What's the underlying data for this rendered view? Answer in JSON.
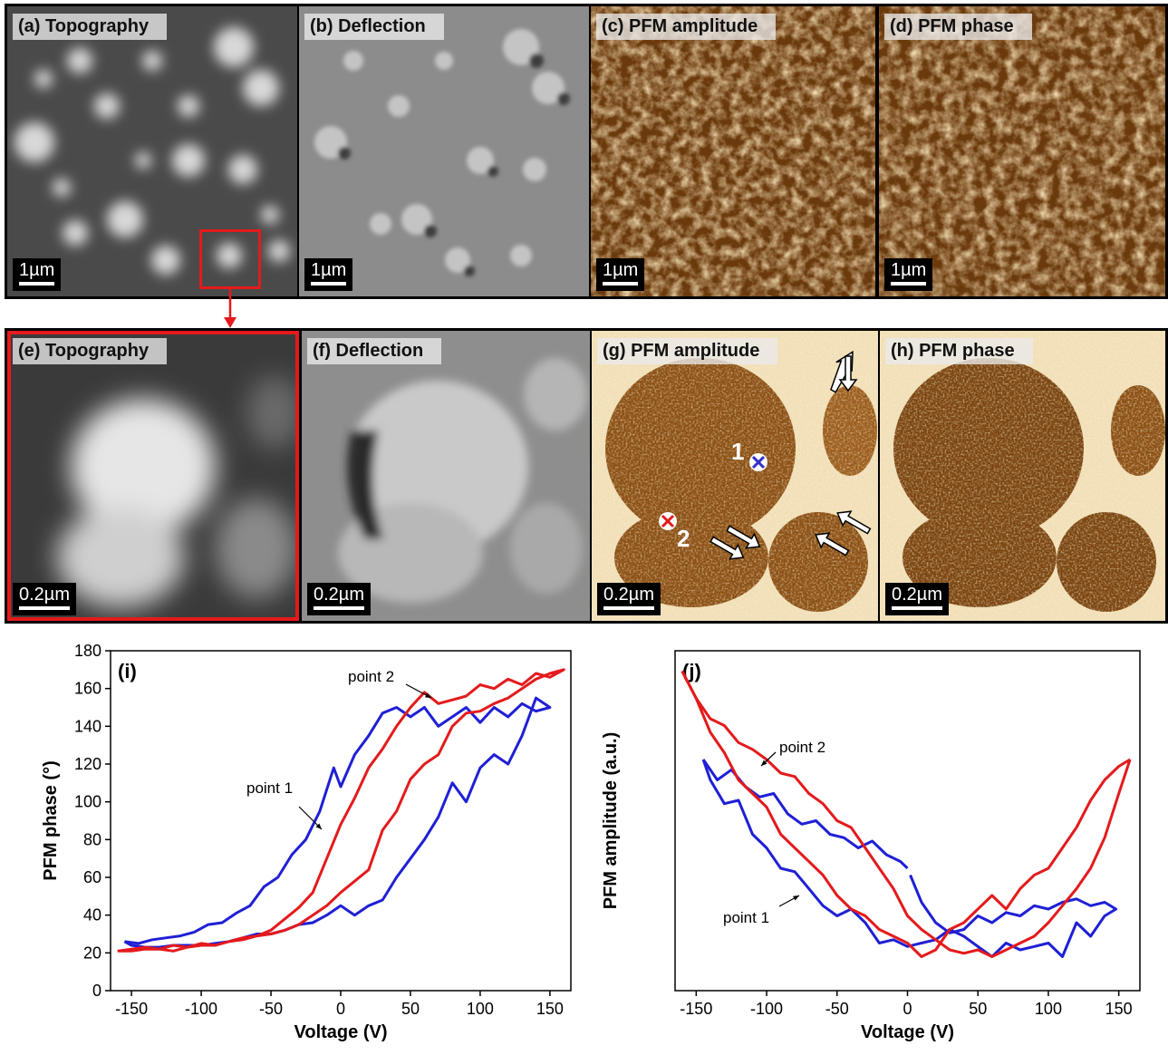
{
  "panels_top": [
    {
      "id": "a",
      "label": "(a) Topography",
      "scale": "1µm",
      "style": "gray-topo"
    },
    {
      "id": "b",
      "label": "(b) Deflection",
      "scale": "1µm",
      "style": "gray-defl"
    },
    {
      "id": "c",
      "label": "(c) PFM amplitude",
      "scale": "1µm",
      "style": "gold"
    },
    {
      "id": "d",
      "label": "(d) PFM phase",
      "scale": "1µm",
      "style": "gold"
    }
  ],
  "panels_bottom": [
    {
      "id": "e",
      "label": "(e) Topography",
      "scale": "0.2µm",
      "style": "gray-topo"
    },
    {
      "id": "f",
      "label": "(f) Deflection",
      "scale": "0.2µm",
      "style": "gray-defl"
    },
    {
      "id": "g",
      "label": "(g) PFM amplitude",
      "scale": "0.2µm",
      "style": "gold"
    },
    {
      "id": "h",
      "label": "(h) PFM phase",
      "scale": "0.2µm",
      "style": "gold"
    }
  ],
  "markers": {
    "point1": "1",
    "point2": "2"
  },
  "colors": {
    "red": "#e41a1c",
    "blue": "#1f1fd6",
    "gold": "#c8902a",
    "frame": "#000000"
  },
  "chart_data": [
    {
      "type": "line",
      "panel_label": "(i)",
      "xlabel": "Voltage (V)",
      "ylabel": "PFM phase (°)",
      "xlim": [
        -165,
        165
      ],
      "ylim": [
        0,
        180
      ],
      "xticks": [
        -150,
        -100,
        -50,
        0,
        50,
        100,
        150
      ],
      "yticks": [
        0,
        20,
        40,
        60,
        80,
        100,
        120,
        140,
        160,
        180
      ],
      "annotations": [
        {
          "text": "point 1"
        },
        {
          "text": "point 2"
        }
      ],
      "series": [
        {
          "color": "blue",
          "x": [
            -155,
            -145,
            -135,
            -125,
            -115,
            -105,
            -95,
            -85,
            -75,
            -65,
            -55,
            -45,
            -35,
            -25,
            -15,
            -5,
            0,
            10,
            20,
            30,
            40,
            50,
            60,
            70,
            80,
            90,
            100,
            110,
            120,
            130,
            140,
            150,
            140,
            130,
            120,
            110,
            100,
            90,
            80,
            70,
            60,
            50,
            40,
            30,
            20,
            10,
            0,
            -10,
            -20,
            -30,
            -40,
            -50,
            -60,
            -70,
            -80,
            -90,
            -100,
            -110,
            -120,
            -130,
            -140,
            -150,
            -155
          ],
          "y": [
            26,
            25,
            27,
            28,
            29,
            31,
            35,
            36,
            41,
            45,
            55,
            60,
            72,
            80,
            95,
            118,
            108,
            125,
            135,
            147,
            150,
            145,
            150,
            140,
            145,
            150,
            142,
            150,
            145,
            152,
            148,
            150,
            155,
            135,
            120,
            125,
            118,
            100,
            110,
            92,
            80,
            70,
            60,
            48,
            45,
            40,
            45,
            40,
            36,
            35,
            32,
            30,
            30,
            28,
            26,
            25,
            24,
            24,
            24,
            23,
            23,
            24,
            26
          ]
        },
        {
          "color": "red",
          "x": [
            -160,
            -150,
            -140,
            -130,
            -120,
            -110,
            -100,
            -90,
            -80,
            -70,
            -60,
            -50,
            -40,
            -30,
            -20,
            -10,
            0,
            10,
            20,
            30,
            40,
            50,
            60,
            70,
            80,
            90,
            100,
            110,
            120,
            130,
            140,
            150,
            160,
            150,
            140,
            130,
            120,
            110,
            100,
            90,
            80,
            70,
            60,
            50,
            40,
            30,
            20,
            10,
            0,
            -10,
            -20,
            -30,
            -40,
            -50,
            -60,
            -70,
            -80,
            -90,
            -100,
            -110,
            -120,
            -130,
            -140,
            -150,
            -160
          ],
          "y": [
            21,
            22,
            23,
            22,
            24,
            23,
            25,
            24,
            26,
            27,
            29,
            32,
            38,
            44,
            52,
            70,
            88,
            102,
            118,
            128,
            140,
            150,
            158,
            152,
            154,
            156,
            162,
            160,
            165,
            162,
            168,
            166,
            170,
            168,
            165,
            160,
            155,
            152,
            148,
            147,
            140,
            125,
            120,
            112,
            95,
            85,
            64,
            58,
            52,
            45,
            40,
            35,
            32,
            30,
            29,
            28,
            26,
            24,
            24,
            23,
            21,
            22,
            22,
            21,
            21
          ]
        }
      ]
    },
    {
      "type": "line",
      "panel_label": "(j)",
      "xlabel": "Voltage (V)",
      "ylabel": "PFM amplitude (a.u.)",
      "xlim": [
        -165,
        165
      ],
      "ylim": [
        0,
        100
      ],
      "xticks": [
        -150,
        -100,
        -50,
        0,
        50,
        100,
        150
      ],
      "yticks": [],
      "annotations": [
        {
          "text": "point 2"
        },
        {
          "text": "point 1"
        }
      ],
      "series": [
        {
          "color": "blue",
          "x": [
            -145,
            -135,
            -125,
            -115,
            -105,
            -95,
            -85,
            -75,
            -65,
            -55,
            -45,
            -35,
            -25,
            -15,
            -5,
            0
          ],
          "y": [
            68,
            62,
            65,
            60,
            57,
            58,
            52,
            49,
            50,
            46,
            45,
            42,
            44,
            40,
            38,
            36
          ]
        },
        {
          "color": "blue",
          "x": [
            -145,
            -140,
            -130,
            -120,
            -110,
            -100,
            -90,
            -80,
            -70,
            -60,
            -50,
            -40,
            -30,
            -20,
            -10,
            0,
            10,
            20,
            30,
            40,
            50,
            60,
            70,
            80,
            90,
            100,
            110,
            120,
            130,
            140,
            148,
            140,
            130,
            120,
            110,
            100,
            90,
            80,
            70,
            60,
            50,
            40,
            30,
            20,
            10,
            2
          ],
          "y": [
            68,
            62,
            55,
            56,
            46,
            42,
            36,
            35,
            30,
            25,
            22,
            24,
            20,
            14,
            15,
            13,
            14,
            15,
            18,
            16,
            13,
            10,
            14,
            12,
            13,
            14,
            10,
            20,
            16,
            22,
            24,
            26,
            25,
            27,
            26,
            24,
            25,
            22,
            23,
            20,
            22,
            18,
            17,
            20,
            26,
            34
          ]
        },
        {
          "color": "red",
          "x": [
            -160,
            -150,
            -140,
            -130,
            -120,
            -110,
            -100,
            -90,
            -80,
            -70,
            -60,
            -50,
            -40,
            -30,
            -20,
            -10,
            0,
            10,
            20,
            30,
            40,
            50,
            60,
            70,
            80,
            90,
            100,
            110,
            120,
            130,
            140,
            150,
            158
          ],
          "y": [
            94,
            86,
            80,
            78,
            73,
            71,
            68,
            64,
            63,
            58,
            55,
            50,
            48,
            42,
            36,
            30,
            22,
            18,
            15,
            12,
            11,
            12,
            10,
            12,
            14,
            16,
            20,
            25,
            30,
            36,
            45,
            58,
            68
          ]
        },
        {
          "color": "red",
          "x": [
            158,
            150,
            140,
            130,
            120,
            110,
            100,
            90,
            80,
            70,
            60,
            50,
            40,
            30,
            20,
            10,
            0,
            -10,
            -20,
            -30,
            -40,
            -50,
            -60,
            -70,
            -80,
            -90,
            -100,
            -110,
            -120,
            -130,
            -140,
            -150,
            -160
          ],
          "y": [
            68,
            66,
            62,
            56,
            48,
            42,
            36,
            34,
            30,
            24,
            28,
            24,
            20,
            18,
            12,
            10,
            14,
            16,
            18,
            22,
            24,
            28,
            34,
            38,
            42,
            46,
            54,
            58,
            62,
            70,
            76,
            86,
            94
          ]
        }
      ]
    }
  ]
}
